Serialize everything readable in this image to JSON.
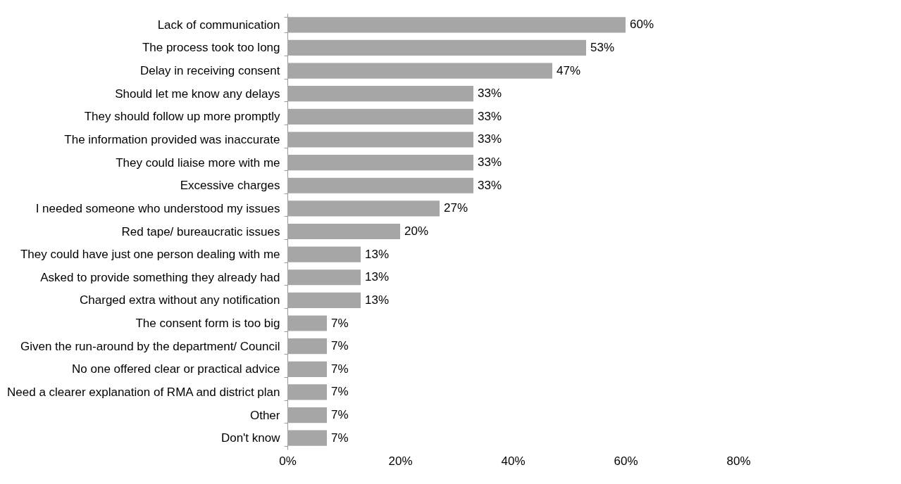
{
  "chart_data": {
    "type": "bar",
    "orientation": "horizontal",
    "categories": [
      "Lack of communication",
      "The process took too long",
      "Delay in receiving consent",
      "Should let me know any delays",
      "They should follow up more promptly",
      "The information provided was inaccurate",
      "They could liaise more with me",
      "Excessive charges",
      "I needed someone who understood my issues",
      "Red tape/ bureaucratic issues",
      "They could have just one person dealing with me",
      "Asked to provide something they already had",
      "Charged extra without any notification",
      "The consent form is too big",
      "Given the run-around by the department/ Council",
      "No one offered clear or practical advice",
      "Need a clearer explanation of RMA and district plan",
      "Other",
      "Don't know"
    ],
    "values": [
      60,
      53,
      47,
      33,
      33,
      33,
      33,
      33,
      27,
      20,
      13,
      13,
      13,
      7,
      7,
      7,
      7,
      7,
      7
    ],
    "value_labels": [
      "60%",
      "53%",
      "47%",
      "33%",
      "33%",
      "33%",
      "33%",
      "33%",
      "27%",
      "20%",
      "13%",
      "13%",
      "13%",
      "7%",
      "7%",
      "7%",
      "7%",
      "7%",
      "7%"
    ],
    "color": "#a6a6a6",
    "xlim": [
      0,
      80
    ],
    "xticks": [
      {
        "value": 0,
        "label": "0%"
      },
      {
        "value": 20,
        "label": "20%"
      },
      {
        "value": 40,
        "label": "40%"
      },
      {
        "value": 60,
        "label": "60%"
      },
      {
        "value": 80,
        "label": "80%"
      }
    ],
    "grid": false
  }
}
